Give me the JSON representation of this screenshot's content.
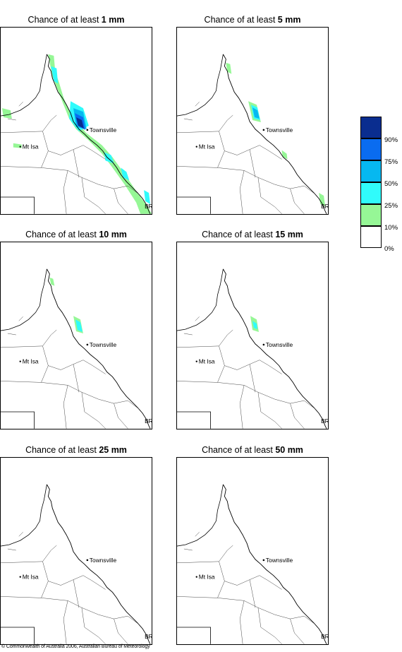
{
  "panels": [
    {
      "prefix": "Chance of at least ",
      "amount": "1 mm"
    },
    {
      "prefix": "Chance of at least ",
      "amount": "5 mm"
    },
    {
      "prefix": "Chance of at least ",
      "amount": "10 mm"
    },
    {
      "prefix": "Chance of at least ",
      "amount": "15 mm"
    },
    {
      "prefix": "Chance of at least ",
      "amount": "25 mm"
    },
    {
      "prefix": "Chance of at least ",
      "amount": "50 mm"
    }
  ],
  "places": {
    "townsville": "Townsville",
    "mt_isa": "Mt Isa",
    "brisbane": "BRIS"
  },
  "legend": {
    "colors": [
      "#0a2d8f",
      "#0a6cf0",
      "#06b8f0",
      "#30fbfb",
      "#96f796",
      "#ffffff"
    ],
    "labels": [
      "90%",
      "75%",
      "50%",
      "25%",
      "10%",
      "0%"
    ]
  },
  "footer": "© Commonwealth of Australia 2006, Australian Bureau of Meteorology"
}
